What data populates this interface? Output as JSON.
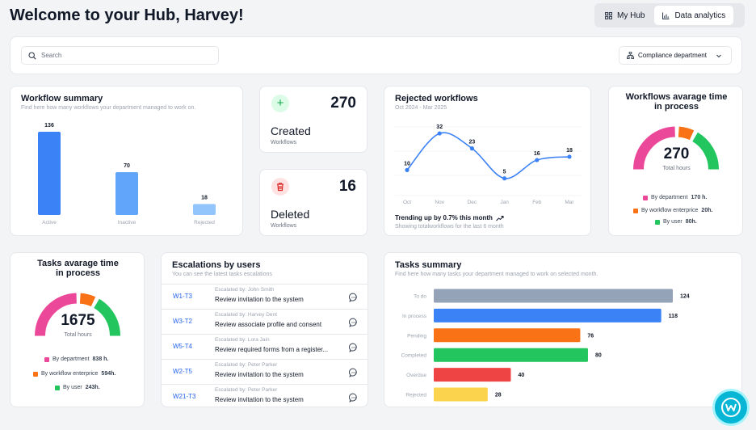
{
  "header": {
    "title": "Welcome to your Hub, Harvey!",
    "tabs": [
      {
        "label": "My Hub",
        "icon": "grid-icon",
        "active": false
      },
      {
        "label": "Data analytics",
        "icon": "bar-chart-icon",
        "active": true
      }
    ]
  },
  "filters": {
    "search_placeholder": "Search",
    "department": "Compliance department"
  },
  "workflow_summary": {
    "title": "Workflow summary",
    "subtitle": "Find here how many workflows your department managed to work on.",
    "chart_data": {
      "type": "bar",
      "categories": [
        "Active",
        "Inactive",
        "Rejected"
      ],
      "values": [
        136,
        70,
        18
      ],
      "colors": [
        "#3b82f6",
        "#60a5fa",
        "#93c5fd"
      ]
    }
  },
  "created": {
    "value": "270",
    "label": "Created",
    "sub": "Workflows"
  },
  "deleted": {
    "value": "16",
    "label": "Deleted",
    "sub": "Workflows"
  },
  "rejected_workflows": {
    "title": "Rejected workflows",
    "subtitle": "Oct 2024 - Mar 2025",
    "trend": "Trending up by 0.7% this month",
    "note": "Showing totalworkflows for the last 6 month",
    "chart_data": {
      "type": "line",
      "x": [
        "Oct",
        "Nov",
        "Dec",
        "Jan",
        "Feb",
        "Mar"
      ],
      "values": [
        10,
        32,
        23,
        5,
        16,
        18
      ]
    }
  },
  "workflow_time": {
    "title_line1": "Workflows avarage time",
    "title_line2": "in process",
    "value": "270",
    "unit": "Total hours",
    "legend": [
      {
        "label": "By department",
        "value": "170 h.",
        "color": "#ec4899"
      },
      {
        "label": "By workflow enterprice",
        "value": "20h.",
        "color": "#f97316"
      },
      {
        "label": "By user",
        "value": "80h.",
        "color": "#22c55e"
      }
    ]
  },
  "task_time": {
    "title_line1": "Tasks avarage time",
    "title_line2": "in process",
    "value": "1675",
    "unit": "Total hours",
    "legend": [
      {
        "label": "By department",
        "value": "838 h.",
        "color": "#ec4899"
      },
      {
        "label": "By workflow enterprice",
        "value": "594h.",
        "color": "#f97316"
      },
      {
        "label": "By user",
        "value": "243h.",
        "color": "#22c55e"
      }
    ]
  },
  "escalations": {
    "title": "Escalations by users",
    "subtitle": "You can see the latest tasks escalations",
    "rows": [
      {
        "id": "W1-T3",
        "by": "Escalated by: John Smith",
        "text": "Review invitation to the system"
      },
      {
        "id": "W3-T2",
        "by": "Escalated by: Harvey Dent",
        "text": "Review associate profile and consent"
      },
      {
        "id": "W5-T4",
        "by": "Escalated by: Lora Jain",
        "text": "Review required forms from a register..."
      },
      {
        "id": "W2-T5",
        "by": "Escalated by: Peter Parker",
        "text": "Review invitation to the system"
      },
      {
        "id": "W21-T3",
        "by": "Escalated by: Peter Parker",
        "text": "Review invitation to the system"
      }
    ]
  },
  "tasks_summary": {
    "title": "Tasks summary",
    "subtitle": "Find here how many tasks your department managed to work on selected month.",
    "chart_data": {
      "type": "bar",
      "orientation": "horizontal",
      "categories": [
        "To do",
        "In process",
        "Pending",
        "Completed",
        "Overdue",
        "Rejected"
      ],
      "values": [
        124,
        118,
        76,
        80,
        40,
        28
      ],
      "colors": [
        "#94a3b8",
        "#3b82f6",
        "#f97316",
        "#22c55e",
        "#ef4444",
        "#fcd34d"
      ]
    }
  }
}
